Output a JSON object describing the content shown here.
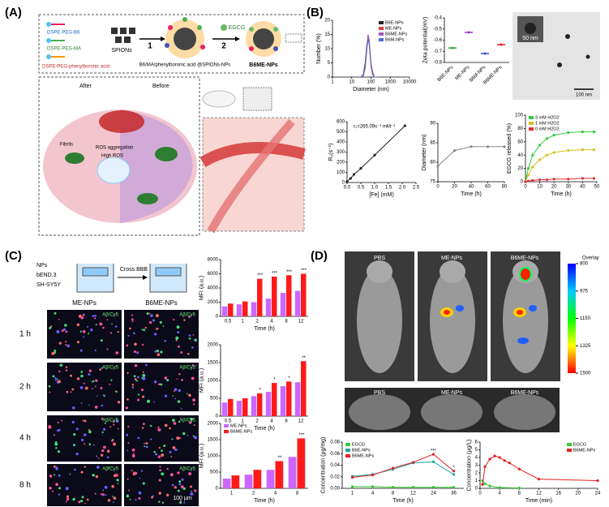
{
  "panels": [
    "(A)",
    "(B)",
    "(C)",
    "(D)"
  ],
  "schematic": {
    "lipids": [
      "DSPE-PEG-B6",
      "DSPE-PEG-MA",
      "DSPE-PEG-phenylboronic acid"
    ],
    "spions": "SPIONs",
    "steps": [
      "1",
      "2"
    ],
    "egcg": "EGCG",
    "intermediate": "B6/MA/phenylboronic acid @SPIONs-NPs",
    "product": "B6ME-NPs",
    "cell": [
      "After",
      "Before",
      "Fibrils",
      "ROS aggregation",
      "High ROS"
    ]
  },
  "tem": {
    "scales": [
      "50 nm",
      "100 nm"
    ]
  },
  "transwell": {
    "labels": [
      "NPs",
      "bEND.3",
      "SH-SY5Y"
    ],
    "arrow": "Cross BBB"
  },
  "microscopy": {
    "columns": [
      "ME-NPs",
      "B6ME-NPs"
    ],
    "rows": [
      "1 h",
      "2 h",
      "4 h",
      "8 h"
    ],
    "stain": "Aβ/Cy5",
    "scale": "100 μm"
  },
  "imaging": {
    "mice": [
      "PBS",
      "ME-NPs",
      "B6ME-NPs"
    ],
    "brains": [
      "PBS",
      "ME-NPs",
      "B6ME-NPs"
    ],
    "colorbar": {
      "label": "Overlay",
      "lim": [
        800,
        1500
      ],
      "ticks": [
        800,
        975,
        1150,
        1325,
        1500
      ]
    }
  },
  "chart_data": [
    {
      "type": "line",
      "xlabel": "Diameter (nm)",
      "ylabel": "Number (%)",
      "xlog": true,
      "xlim": [
        1,
        10000
      ],
      "xticks": [
        1,
        10,
        100,
        1000,
        10000
      ],
      "ylim": [
        0,
        20
      ],
      "yticks": [
        0,
        5,
        10,
        15,
        20
      ],
      "legend": "upper right",
      "x": [
        30,
        40,
        50,
        60,
        70,
        80,
        90,
        100,
        120,
        150,
        200
      ],
      "series": [
        {
          "name": "B6E-NPs",
          "color": "#222222",
          "values": [
            0,
            1,
            5,
            11,
            14,
            12,
            8,
            4,
            1,
            0,
            0
          ]
        },
        {
          "name": "ME-NPs",
          "color": "#e0403a",
          "values": [
            0,
            0.5,
            3,
            9,
            14,
            13,
            9,
            5,
            2,
            0,
            0
          ]
        },
        {
          "name": "B6ME-NPs",
          "color": "#9b59b6",
          "values": [
            0,
            0.5,
            4,
            10,
            15,
            13,
            8,
            4,
            1,
            0,
            0
          ]
        },
        {
          "name": "B6M-NPs",
          "color": "#4a6fd4",
          "values": [
            0,
            1,
            4,
            10,
            13,
            12,
            8,
            4,
            1,
            0,
            0
          ]
        }
      ]
    },
    {
      "type": "dot",
      "ylabel": "Zeta potential(mV)",
      "categories": [
        "B6E-NPs",
        "ME-NPs",
        "B6M-NPs",
        "B6ME-NPs"
      ],
      "values": [
        -0.67,
        -0.53,
        -0.72,
        -0.64
      ],
      "colors": [
        "#2ca02c",
        "#9b30d0",
        "#3050c0",
        "#e02020"
      ],
      "ylim": [
        -0.8,
        -0.4
      ],
      "yticks": [
        -0.8,
        -0.7,
        -0.6,
        -0.5,
        -0.4
      ]
    },
    {
      "type": "line",
      "xlabel": "[Fe] (mM)",
      "ylabel": "R₂(s⁻¹)",
      "annotation": "r₂=265.09s⁻¹ mM⁻¹",
      "color": "#222222",
      "markers": true,
      "x": [
        0,
        0.125,
        0.25,
        0.5,
        1,
        2.1
      ],
      "values": [
        10,
        40,
        80,
        140,
        270,
        560
      ],
      "xlim": [
        0,
        2.5
      ],
      "xticks": [
        {
          "value": 0,
          "label": "0.0"
        },
        0.5,
        {
          "value": 1,
          "label": "1.0"
        },
        1.5,
        {
          "value": 2,
          "label": "2.0"
        },
        2.5
      ],
      "ylim": [
        0,
        600
      ],
      "yticks": [
        0,
        100,
        200,
        300,
        400,
        500,
        600
      ]
    },
    {
      "type": "line",
      "xlabel": "Time (h)",
      "ylabel": "Diameter (nm)",
      "color": "#888888",
      "markers": true,
      "x": [
        0,
        20,
        40,
        60,
        80
      ],
      "values": [
        79,
        83,
        84,
        84,
        84
      ],
      "xlim": [
        0,
        80
      ],
      "xticks": [
        0,
        20,
        40,
        60,
        80
      ],
      "ylim": [
        75,
        90
      ],
      "yticks": [
        75,
        80,
        85,
        90
      ]
    },
    {
      "type": "line",
      "xlabel": "Time (h)",
      "ylabel": "EGCG released (%)",
      "markers": true,
      "legend": "upper left",
      "x": [
        0,
        2,
        5,
        10,
        15,
        20,
        30,
        40,
        48
      ],
      "xlim": [
        0,
        50
      ],
      "xticks": [
        0,
        10,
        20,
        30,
        40,
        50
      ],
      "ylim": [
        0,
        100
      ],
      "yticks": [
        0,
        20,
        40,
        60,
        80,
        100
      ],
      "series": [
        {
          "name": "3 mM H2O2",
          "color": "#2ecc40",
          "values": [
            0,
            20,
            40,
            55,
            65,
            70,
            74,
            75,
            75
          ]
        },
        {
          "name": "1 mM H2O2",
          "color": "#d4c21a",
          "values": [
            0,
            10,
            22,
            33,
            40,
            44,
            47,
            48,
            48
          ]
        },
        {
          "name": "0 mM H2O2",
          "color": "#e0303a",
          "values": [
            0,
            1,
            2,
            3,
            3,
            4,
            4,
            5,
            5
          ]
        }
      ]
    },
    {
      "type": "bar",
      "xlabel": "Time (h)",
      "ylabel": "MFI (a.u.)",
      "categories": [
        "0.5",
        "1",
        "2",
        "4",
        "8",
        "12"
      ],
      "ylim": [
        0,
        8000
      ],
      "yticks": [
        0,
        2000,
        4000,
        6000,
        8000
      ],
      "series": [
        {
          "name": "ME-NPs",
          "color": "#cc66ff",
          "values": [
            1400,
            1700,
            2000,
            2500,
            3300,
            3600
          ]
        },
        {
          "name": "B6ME-NPs",
          "color": "#ff1a1a",
          "values": [
            1800,
            2100,
            5300,
            5600,
            5800,
            6000
          ]
        }
      ],
      "significance": [
        null,
        null,
        "***",
        "***",
        "***",
        "***"
      ]
    },
    {
      "type": "bar",
      "xlabel": "Time (h)",
      "ylabel": "MFI (a.u.)",
      "categories": [
        "0.5",
        "1",
        "2",
        "4",
        "8",
        "12"
      ],
      "ylim": [
        0,
        2000
      ],
      "yticks": [
        0,
        500,
        1000,
        1500,
        2000
      ],
      "series": [
        {
          "name": "ME-NPs",
          "color": "#cc66ff",
          "values": [
            380,
            430,
            560,
            680,
            840,
            950
          ]
        },
        {
          "name": "B6ME-NPs",
          "color": "#ff1a1a",
          "values": [
            480,
            500,
            640,
            930,
            970,
            1540
          ]
        }
      ],
      "significance": [
        null,
        null,
        "*",
        "*",
        "*",
        "**"
      ]
    },
    {
      "type": "bar",
      "xlabel": "Time (h)",
      "ylabel": "MFI (a.u.)",
      "categories": [
        "1",
        "2",
        "4",
        "8"
      ],
      "ylim": [
        0,
        2000
      ],
      "yticks": [
        0,
        500,
        1000,
        1500,
        2000
      ],
      "legend": "upper left",
      "series": [
        {
          "name": "ME-NPs",
          "color": "#cc66ff",
          "values": [
            300,
            420,
            570,
            970
          ]
        },
        {
          "name": "B6ME-NPs",
          "color": "#ff1a1a",
          "values": [
            400,
            570,
            840,
            1540
          ]
        }
      ],
      "significance": [
        null,
        null,
        "**",
        "***"
      ]
    },
    {
      "type": "line",
      "xlabel": "Time (h)",
      "ylabel": "Concentration (μg/mg)",
      "markers": true,
      "legend": "upper left",
      "categories": [
        "1",
        "4",
        "8",
        "12",
        "24",
        "36"
      ],
      "ylim": [
        0,
        0.08
      ],
      "yticks": [
        {
          "value": 0,
          "label": "0.00"
        },
        0.02,
        0.04,
        0.06,
        0.08
      ],
      "series": [
        {
          "name": "EGCG",
          "color": "#33cc33",
          "values": [
            0.003,
            0.003,
            0.002,
            0.002,
            0.002,
            0.002
          ]
        },
        {
          "name": "B6E-NPs",
          "color": "#1aa3a3",
          "values": [
            0.021,
            0.024,
            0.033,
            0.044,
            0.046,
            0.024
          ]
        },
        {
          "name": "B6ME-NPs",
          "color": "#e02020",
          "values": [
            0.019,
            0.023,
            0.035,
            0.045,
            0.059,
            0.03
          ]
        }
      ],
      "significance": [
        null,
        null,
        null,
        null,
        "***",
        "*"
      ]
    },
    {
      "type": "line",
      "xlabel": "Time (min)",
      "ylabel": "Concentration (μg/L)",
      "markers": true,
      "legend": "upper right",
      "xlim": [
        0,
        24
      ],
      "xticks": [
        0,
        4,
        8,
        12,
        16,
        20,
        24
      ],
      "ylim": [
        0,
        6
      ],
      "yticks": [
        0,
        1,
        2,
        3,
        4,
        5,
        6
      ],
      "series": [
        {
          "name": "EGCG",
          "color": "#33cc33",
          "x": [
            0.5,
            1,
            2,
            4,
            8
          ],
          "values": [
            1.0,
            0.6,
            0.3,
            0.1,
            0.05
          ]
        },
        {
          "name": "B6ME-NPs",
          "color": "#e02020",
          "x": [
            0.5,
            1,
            2,
            3,
            4,
            5,
            6,
            8,
            12,
            24
          ],
          "values": [
            0.5,
            2.8,
            3.8,
            4.2,
            4.0,
            3.6,
            3.3,
            2.5,
            1.2,
            1.0
          ]
        }
      ]
    }
  ]
}
